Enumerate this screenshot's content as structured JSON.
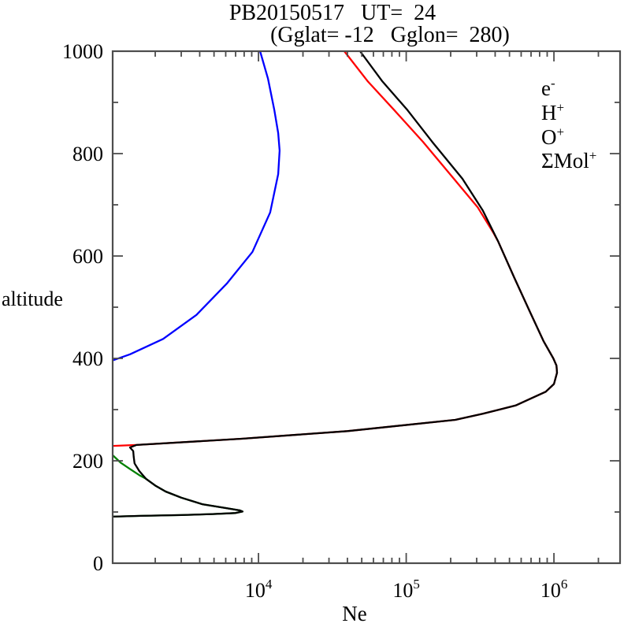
{
  "chart_data": {
    "type": "line",
    "title": "PB20150517   UT=  24",
    "subtitle": "(Gglat= -12   Gglon=  280)",
    "xlabel": "Ne",
    "ylabel": "altitude",
    "x_scale": "log",
    "xlim": [
      1030,
      2803000
    ],
    "ylim": [
      0,
      1000
    ],
    "grid": "off",
    "axis_color": "#4d4d4d",
    "y_major_ticks": [
      {
        "value": 0,
        "label": "0"
      },
      {
        "value": 200,
        "label": "200"
      },
      {
        "value": 400,
        "label": "400"
      },
      {
        "value": 600,
        "label": "600"
      },
      {
        "value": 800,
        "label": "800"
      },
      {
        "value": 1000,
        "label": "1000"
      }
    ],
    "y_minor_step": 100,
    "x_decade_labels": [
      {
        "exp": 4,
        "base": "10",
        "sup": "4"
      },
      {
        "exp": 5,
        "base": "10",
        "sup": "5"
      },
      {
        "exp": 6,
        "base": "10",
        "sup": "6"
      }
    ],
    "legend": {
      "position": "top-right",
      "items": [
        {
          "label": "e",
          "sup": "-",
          "color": "#000000"
        },
        {
          "label": "H",
          "sup": "+",
          "color": "#0000ff"
        },
        {
          "label": "O",
          "sup": "+",
          "color": "#ff0000"
        },
        {
          "label": "ΣMol",
          "sup": "+",
          "color": "#008000"
        }
      ]
    },
    "series": [
      {
        "id": "mol-ions",
        "label": "ΣMol+",
        "color": "#008000",
        "points": [
          [
            1030,
            211
          ],
          [
            1170,
            196
          ],
          [
            1350,
            184
          ],
          [
            1560,
            172
          ],
          [
            1730,
            165
          ],
          [
            2020,
            151
          ],
          [
            2350,
            140
          ],
          [
            3000,
            128
          ],
          [
            4200,
            115
          ],
          [
            5900,
            108
          ],
          [
            7500,
            103
          ],
          [
            7800,
            101
          ],
          [
            7000,
            98
          ],
          [
            4900,
            96
          ],
          [
            3000,
            94
          ],
          [
            1600,
            92.5
          ],
          [
            1030,
            91
          ]
        ]
      },
      {
        "id": "h-plus",
        "label": "H+",
        "color": "#0000ff",
        "points": [
          [
            10250,
            1000
          ],
          [
            11600,
            946
          ],
          [
            12800,
            885
          ],
          [
            13600,
            840
          ],
          [
            13900,
            806
          ],
          [
            13600,
            760
          ],
          [
            12000,
            685
          ],
          [
            9100,
            608
          ],
          [
            6100,
            546
          ],
          [
            3800,
            485
          ],
          [
            2260,
            438
          ],
          [
            1350,
            408
          ],
          [
            1030,
            396
          ]
        ]
      },
      {
        "id": "o-plus",
        "label": "O+",
        "color": "#ff0000",
        "points": [
          [
            38100,
            1000
          ],
          [
            55000,
            941
          ],
          [
            83000,
            885
          ],
          [
            130000,
            823
          ],
          [
            210000,
            751
          ],
          [
            305000,
            695
          ],
          [
            390000,
            645
          ],
          [
            420000,
            628
          ],
          [
            540000,
            557
          ],
          [
            690000,
            490
          ],
          [
            850000,
            434
          ],
          [
            990000,
            400
          ],
          [
            1040000,
            386
          ],
          [
            1050000,
            372
          ],
          [
            1000000,
            350
          ],
          [
            880000,
            335
          ],
          [
            780000,
            328
          ],
          [
            550000,
            308
          ],
          [
            330000,
            292
          ],
          [
            215000,
            280
          ],
          [
            40000,
            258
          ],
          [
            7700,
            243
          ],
          [
            1490,
            231
          ],
          [
            1030,
            229
          ]
        ]
      },
      {
        "id": "electron",
        "label": "e-",
        "color": "#000000",
        "points": [
          [
            48700,
            1000
          ],
          [
            69000,
            941
          ],
          [
            102000,
            885
          ],
          [
            150000,
            823
          ],
          [
            240000,
            751
          ],
          [
            330000,
            689
          ],
          [
            420000,
            628
          ],
          [
            540000,
            557
          ],
          [
            690000,
            490
          ],
          [
            850000,
            434
          ],
          [
            990000,
            400
          ],
          [
            1040000,
            386
          ],
          [
            1050000,
            372
          ],
          [
            1000000,
            350
          ],
          [
            880000,
            335
          ],
          [
            780000,
            328
          ],
          [
            550000,
            308
          ],
          [
            330000,
            292
          ],
          [
            215000,
            280
          ],
          [
            40000,
            258
          ],
          [
            7700,
            243
          ],
          [
            1490,
            231
          ],
          [
            1350,
            226
          ],
          [
            1420,
            219
          ],
          [
            1430,
            208
          ],
          [
            1450,
            195
          ],
          [
            1560,
            180
          ],
          [
            1730,
            165
          ],
          [
            2020,
            151
          ],
          [
            2350,
            140
          ],
          [
            3000,
            128
          ],
          [
            4200,
            115
          ],
          [
            5900,
            108
          ],
          [
            7500,
            103
          ],
          [
            7800,
            101
          ],
          [
            7000,
            98
          ],
          [
            4900,
            96
          ],
          [
            3000,
            94
          ],
          [
            1600,
            92.5
          ],
          [
            1030,
            91
          ]
        ]
      }
    ]
  }
}
